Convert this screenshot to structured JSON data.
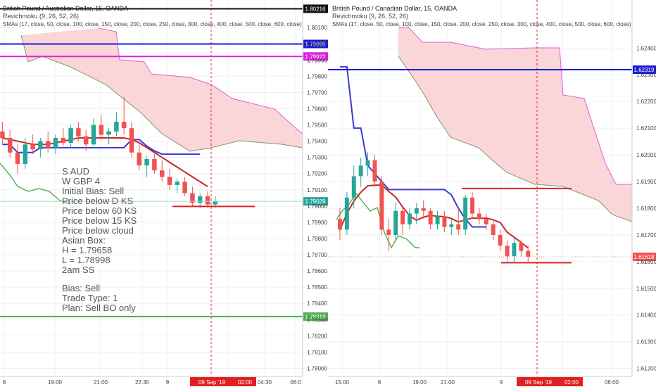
{
  "colors": {
    "background": "#ffffff",
    "grid": "#eef0f3",
    "cloud_fill": "#f9c5c8",
    "cloud_upper": "#e05ce0",
    "cloud_lower": "#7a9a6a",
    "candle_up": "#26a69a",
    "candle_down": "#ef5350",
    "kijun": "#3a3ad8",
    "tenkan": "#ef5350",
    "sma": "#c62828",
    "chikou": "#4caf50",
    "level_red": "#e02020",
    "axis_text": "#444444",
    "crosshair": "#e02020"
  },
  "left_panel": {
    "legend": {
      "title": "British Pound / Australian Dollar, 15, OANDA",
      "indicator1": "Revichmoku (9, 26, 52, 26)",
      "indicator2": "SMAs (17, close, 50, close, 100, close, 150, close, 200, close, 250, close, 300, close, 400, close, 500, close, 600, close)"
    },
    "price_labels": [
      {
        "value": "1.80216",
        "color": "#111111"
      },
      {
        "value": "1.79999",
        "color": "#1a1ad8"
      },
      {
        "value": "1.79922",
        "color": "#e020e0"
      },
      {
        "value": "1.79029",
        "color": "#26a69a"
      },
      {
        "value": "1.78319",
        "color": "#4caf50"
      }
    ],
    "time_labels": [
      "8",
      "19:00",
      "21:00",
      "22:30",
      "9",
      "02:00",
      "04:30",
      "06:0"
    ],
    "date_tag": "09 Sep '19",
    "notes": {
      "line1": "S AUD",
      "line2": "W GBP 4",
      "line3": "Initial Bias: Sell",
      "line4": "Price below D KS",
      "line5": "Price below 60 KS",
      "line6": "Price below 15 KS",
      "line7": "Price below cloud",
      "line8": "Asian Box:",
      "line9": "H = 1.79658",
      "line10": "L = 1.78998",
      "line11": "2am SS",
      "line12": "Bias: Sell",
      "line13": "Trade Type: 1",
      "line14": "Plan:  Sell BO only"
    }
  },
  "right_panel": {
    "legend": {
      "title": "British Pound / Canadian Dollar, 15, OANDA",
      "indicator1": "Revichmoku (9, 26, 52, 26)",
      "indicator2": "SMAs (17, close, 50, close, 100, close, 150, close, 200, close, 250, close, 300, close, 400, close, 500, close, 600, close)"
    },
    "price_labels": [
      {
        "value": "1.62319",
        "color": "#1a1ad8"
      },
      {
        "value": "1.61618",
        "color": "#ef5350"
      }
    ],
    "time_labels": [
      "15:00",
      "8",
      "19:00",
      "21:00",
      "9",
      "02:00",
      "06:00"
    ],
    "date_tag": "09 Sep '19"
  },
  "chart_data": [
    {
      "type": "candlestick",
      "title": "British Pound / Australian Dollar, 15, OANDA",
      "yticks": [
        1.801,
        1.8,
        1.799,
        1.798,
        1.797,
        1.796,
        1.795,
        1.794,
        1.793,
        1.792,
        1.791,
        1.79,
        1.789,
        1.788,
        1.787,
        1.786,
        1.785,
        1.784,
        1.783,
        1.782,
        1.781,
        1.78
      ],
      "ylim": [
        1.7795,
        1.8027
      ],
      "horizontal_levels": [
        1.80216,
        1.79999,
        1.79922,
        1.78319
      ],
      "red_level": 1.78998,
      "current_price": 1.79029,
      "candles": [
        [
          1.7946,
          1.7952,
          1.7938,
          1.7942
        ],
        [
          1.7942,
          1.7947,
          1.793,
          1.7933
        ],
        [
          1.7933,
          1.7938,
          1.792,
          1.7926
        ],
        [
          1.7926,
          1.7942,
          1.7923,
          1.7938
        ],
        [
          1.7938,
          1.7944,
          1.7932,
          1.7935
        ],
        [
          1.7935,
          1.7942,
          1.793,
          1.794
        ],
        [
          1.794,
          1.7946,
          1.7933,
          1.7936
        ],
        [
          1.7936,
          1.7944,
          1.7932,
          1.7942
        ],
        [
          1.7942,
          1.7948,
          1.7937,
          1.7939
        ],
        [
          1.7939,
          1.795,
          1.7936,
          1.7948
        ],
        [
          1.7948,
          1.7952,
          1.794,
          1.7943
        ],
        [
          1.7943,
          1.7947,
          1.7934,
          1.7938
        ],
        [
          1.7938,
          1.7954,
          1.7937,
          1.795
        ],
        [
          1.795,
          1.7956,
          1.7941,
          1.7944
        ],
        [
          1.7944,
          1.7948,
          1.7938,
          1.7946
        ],
        [
          1.7946,
          1.7958,
          1.7943,
          1.7952
        ],
        [
          1.7952,
          1.7967,
          1.7944,
          1.7948
        ],
        [
          1.7948,
          1.7952,
          1.793,
          1.7933
        ],
        [
          1.7933,
          1.7938,
          1.7922,
          1.7925
        ],
        [
          1.7925,
          1.7931,
          1.7918,
          1.7929
        ],
        [
          1.7929,
          1.7932,
          1.792,
          1.7922
        ],
        [
          1.7922,
          1.7928,
          1.7915,
          1.7918
        ],
        [
          1.7918,
          1.7923,
          1.791,
          1.7913
        ],
        [
          1.7913,
          1.7917,
          1.7908,
          1.7915
        ],
        [
          1.7915,
          1.7918,
          1.7906,
          1.7908
        ],
        [
          1.7908,
          1.7912,
          1.79,
          1.7902
        ],
        [
          1.7902,
          1.7908,
          1.7899,
          1.7906
        ],
        [
          1.7906,
          1.7909,
          1.7899,
          1.7901
        ],
        [
          1.7901,
          1.7906,
          1.7899,
          1.79029
        ]
      ],
      "kijun_sen": [
        1.7938,
        1.7938,
        1.7933,
        1.7933,
        1.7933,
        1.7936,
        1.7936,
        1.7936,
        1.7936,
        1.7936,
        1.7936,
        1.7936,
        1.7936,
        1.7936,
        1.7936,
        1.7936,
        1.7936,
        1.7941,
        1.7941,
        1.7937,
        1.7934,
        1.7932,
        1.7932,
        1.7932,
        1.7932,
        1.7932,
        1.7932
      ],
      "sma": [
        1.7942,
        1.7941,
        1.794,
        1.7939,
        1.7938,
        1.7938,
        1.7938,
        1.7939,
        1.794,
        1.7941,
        1.7942,
        1.7942,
        1.7942,
        1.7942,
        1.7942,
        1.7942,
        1.7942,
        1.7941,
        1.7939,
        1.7936,
        1.7933,
        1.793,
        1.7927,
        1.7924,
        1.7921,
        1.7918,
        1.7915,
        1.7912
      ]
    },
    {
      "type": "candlestick",
      "title": "British Pound / Canadian Dollar, 15, OANDA",
      "yticks": [
        1.624,
        1.623,
        1.622,
        1.621,
        1.62,
        1.619,
        1.618,
        1.617,
        1.616,
        1.615,
        1.614,
        1.613,
        1.612
      ],
      "ylim": [
        1.6117,
        1.6258
      ],
      "horizontal_levels": [
        1.62319
      ],
      "red_levels": [
        1.61874,
        1.61596
      ],
      "current_price": 1.61618,
      "candles": [
        [
          1.6176,
          1.618,
          1.6168,
          1.6172
        ],
        [
          1.6172,
          1.6186,
          1.617,
          1.6184
        ],
        [
          1.6184,
          1.6196,
          1.618,
          1.6192
        ],
        [
          1.6192,
          1.6199,
          1.6188,
          1.6196
        ],
        [
          1.6196,
          1.6201,
          1.6192,
          1.6198
        ],
        [
          1.6198,
          1.62,
          1.6188,
          1.619
        ],
        [
          1.619,
          1.6192,
          1.617,
          1.6172
        ],
        [
          1.6172,
          1.6176,
          1.6164,
          1.617
        ],
        [
          1.617,
          1.6182,
          1.6168,
          1.6179
        ],
        [
          1.6179,
          1.618,
          1.617,
          1.6174
        ],
        [
          1.6174,
          1.618,
          1.6172,
          1.6178
        ],
        [
          1.6178,
          1.6182,
          1.6174,
          1.618
        ],
        [
          1.618,
          1.6183,
          1.6176,
          1.6179
        ],
        [
          1.6179,
          1.618,
          1.6172,
          1.6174
        ],
        [
          1.6174,
          1.6179,
          1.6172,
          1.6177
        ],
        [
          1.6177,
          1.6179,
          1.6171,
          1.6173
        ],
        [
          1.6173,
          1.6176,
          1.617,
          1.6174
        ],
        [
          1.6174,
          1.618,
          1.617,
          1.6172
        ],
        [
          1.6172,
          1.6185,
          1.617,
          1.6184
        ],
        [
          1.6184,
          1.6186,
          1.6176,
          1.6178
        ],
        [
          1.6178,
          1.618,
          1.6174,
          1.6176
        ],
        [
          1.6176,
          1.6178,
          1.6172,
          1.6174
        ],
        [
          1.6174,
          1.6176,
          1.6168,
          1.617
        ],
        [
          1.617,
          1.6172,
          1.6164,
          1.6166
        ],
        [
          1.6166,
          1.6168,
          1.616,
          1.6162
        ],
        [
          1.6162,
          1.6169,
          1.616,
          1.6167
        ],
        [
          1.6167,
          1.6168,
          1.6162,
          1.6164
        ],
        [
          1.6164,
          1.6166,
          1.616,
          1.61618
        ]
      ],
      "kijun_sen": [
        1.6233,
        1.6233,
        1.621,
        1.621,
        1.6196,
        1.6193,
        1.619,
        1.6187,
        1.6187,
        1.6187,
        1.6187,
        1.6187,
        1.6187,
        1.6187,
        1.6187,
        1.6187,
        1.6185,
        1.618,
        1.6176,
        1.6173,
        1.6173,
        1.6173
      ]
    }
  ]
}
